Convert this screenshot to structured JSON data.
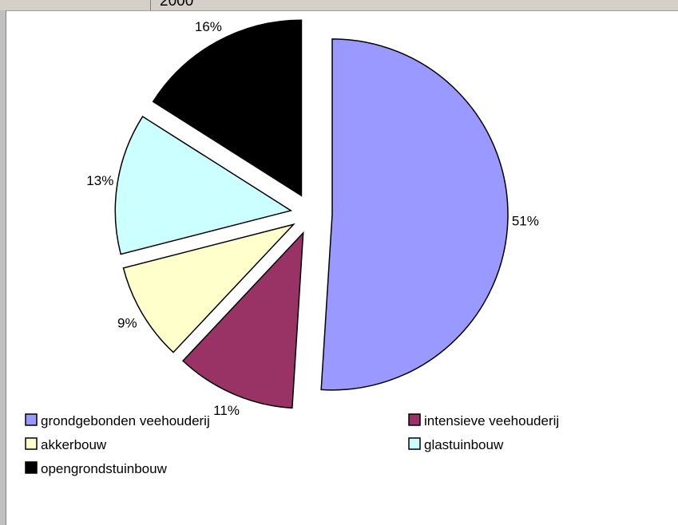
{
  "top_cell_text": "2000",
  "chart_data": {
    "type": "pie",
    "title": "",
    "exploded": true,
    "slices": [
      {
        "label": "grondgebonden veehouderij",
        "value": 51,
        "display": "51%",
        "color": "#9999ff"
      },
      {
        "label": "intensieve veehouderij",
        "value": 11,
        "display": "11%",
        "color": "#993366"
      },
      {
        "label": "akkerbouw",
        "value": 9,
        "display": "9%",
        "color": "#ffffcc"
      },
      {
        "label": "glastuinbouw",
        "value": 13,
        "display": "13%",
        "color": "#ccffff"
      },
      {
        "label": "opengrondstuinbouw",
        "value": 16,
        "display": "16%",
        "color": "#000000"
      }
    ],
    "legend_position": "bottom"
  }
}
